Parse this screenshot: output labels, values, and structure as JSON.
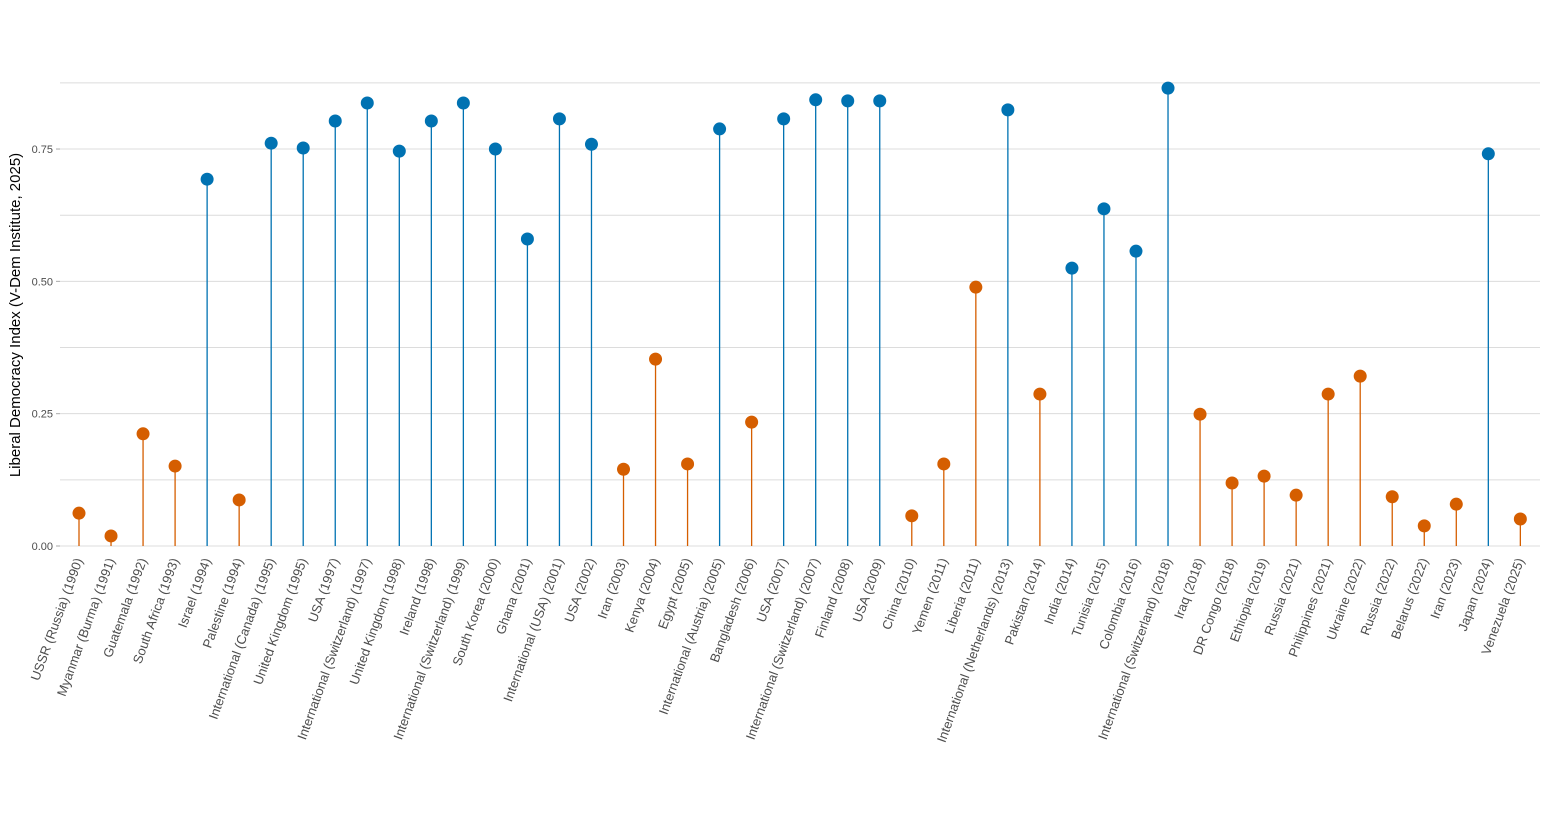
{
  "chart_data": {
    "type": "lollipop",
    "title": "",
    "xlabel": "",
    "ylabel": "Liberal Democracy Index (V-Dem Institute, 2025)",
    "ylim": [
      0,
      0.875
    ],
    "yticks": [
      0,
      0.25,
      0.5,
      0.75
    ],
    "ytick_labels": [
      "0.00",
      "0.25",
      "0.50",
      "0.75"
    ],
    "minor_gridlines": [
      0.125,
      0.375,
      0.625,
      0.875
    ],
    "grid": true,
    "legend": "none",
    "colors": {
      "high": "#0072B2",
      "low": "#D55E00"
    },
    "categories": [
      "USSR (Russia) (1990)",
      "Myanmar (Burma) (1991)",
      "Guatemala (1992)",
      "South Africa (1993)",
      "Israel (1994)",
      "Palestine (1994)",
      "International (Canada) (1995)",
      "United Kingdom (1995)",
      "USA (1997)",
      "International (Switzerland) (1997)",
      "United Kingdom (1998)",
      "Ireland (1998)",
      "International (Switzerland) (1999)",
      "South Korea (2000)",
      "Ghana (2001)",
      "International (USA) (2001)",
      "USA (2002)",
      "Iran (2003)",
      "Kenya (2004)",
      "Egypt (2005)",
      "International (Austria) (2005)",
      "Bangladesh (2006)",
      "USA (2007)",
      "International (Switzerland) (2007)",
      "Finland (2008)",
      "USA (2009)",
      "China (2010)",
      "Yemen (2011)",
      "Liberia (2011)",
      "International (Netherlands) (2013)",
      "Pakistan (2014)",
      "India (2014)",
      "Tunisia (2015)",
      "Colombia (2016)",
      "International (Switzerland) (2018)",
      "Iraq (2018)",
      "DR Congo (2018)",
      "Ethiopia (2019)",
      "Russia (2021)",
      "Philippines (2021)",
      "Ukraine (2022)",
      "Russia (2022)",
      "Belarus (2022)",
      "Iran (2023)",
      "Japan (2024)",
      "Venezuela (2025)"
    ],
    "values": [
      0.062,
      0.019,
      0.212,
      0.151,
      0.693,
      0.087,
      0.761,
      0.752,
      0.803,
      0.837,
      0.746,
      0.803,
      0.837,
      0.75,
      0.58,
      0.807,
      0.759,
      0.145,
      0.353,
      0.155,
      0.788,
      0.234,
      0.807,
      0.843,
      0.841,
      0.841,
      0.057,
      0.155,
      0.489,
      0.824,
      0.287,
      0.525,
      0.637,
      0.557,
      0.865,
      0.249,
      0.119,
      0.132,
      0.096,
      0.287,
      0.321,
      0.093,
      0.038,
      0.079,
      0.741,
      0.051
    ],
    "groups": [
      "low",
      "low",
      "low",
      "low",
      "high",
      "low",
      "high",
      "high",
      "high",
      "high",
      "high",
      "high",
      "high",
      "high",
      "high",
      "high",
      "high",
      "low",
      "low",
      "low",
      "high",
      "low",
      "high",
      "high",
      "high",
      "high",
      "low",
      "low",
      "low",
      "high",
      "low",
      "high",
      "high",
      "high",
      "high",
      "low",
      "low",
      "low",
      "low",
      "low",
      "low",
      "low",
      "low",
      "low",
      "high",
      "low"
    ]
  }
}
